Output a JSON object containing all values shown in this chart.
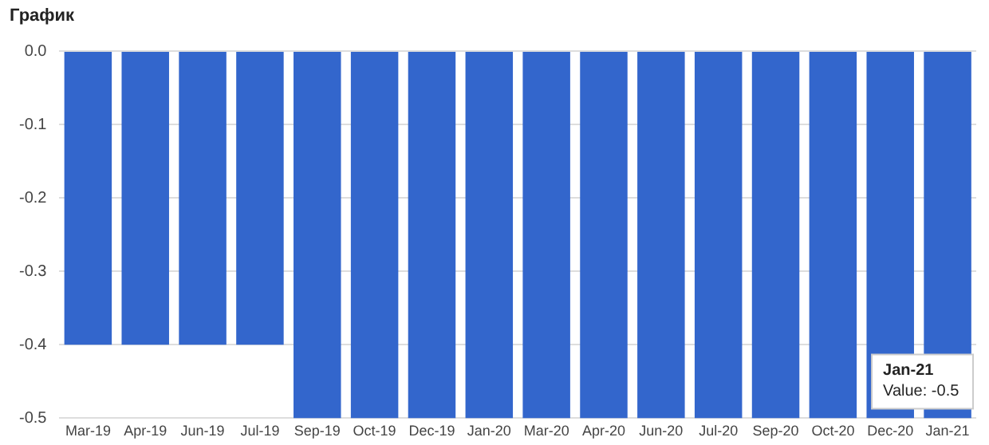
{
  "chart_data": {
    "type": "bar",
    "title": "График",
    "categories": [
      "Mar-19",
      "Apr-19",
      "Jun-19",
      "Jul-19",
      "Sep-19",
      "Oct-19",
      "Dec-19",
      "Jan-20",
      "Mar-20",
      "Apr-20",
      "Jun-20",
      "Jul-20",
      "Sep-20",
      "Oct-20",
      "Dec-20",
      "Jan-21"
    ],
    "values": [
      -0.4,
      -0.4,
      -0.4,
      -0.4,
      -0.5,
      -0.5,
      -0.5,
      -0.5,
      -0.5,
      -0.5,
      -0.5,
      -0.5,
      -0.5,
      -0.5,
      -0.5,
      -0.5
    ],
    "color": "#3366cc",
    "ylim": [
      -0.5,
      0
    ],
    "yticks": [
      {
        "value": 0,
        "label": "0.0"
      },
      {
        "value": -0.1,
        "label": "-0.1"
      },
      {
        "value": -0.2,
        "label": "-0.2"
      },
      {
        "value": -0.3,
        "label": "-0.3"
      },
      {
        "value": -0.4,
        "label": "-0.4"
      },
      {
        "value": -0.5,
        "label": "-0.5"
      }
    ],
    "grid": "y",
    "annotations": [
      "Jan-21",
      "Value: -0.5"
    ]
  }
}
